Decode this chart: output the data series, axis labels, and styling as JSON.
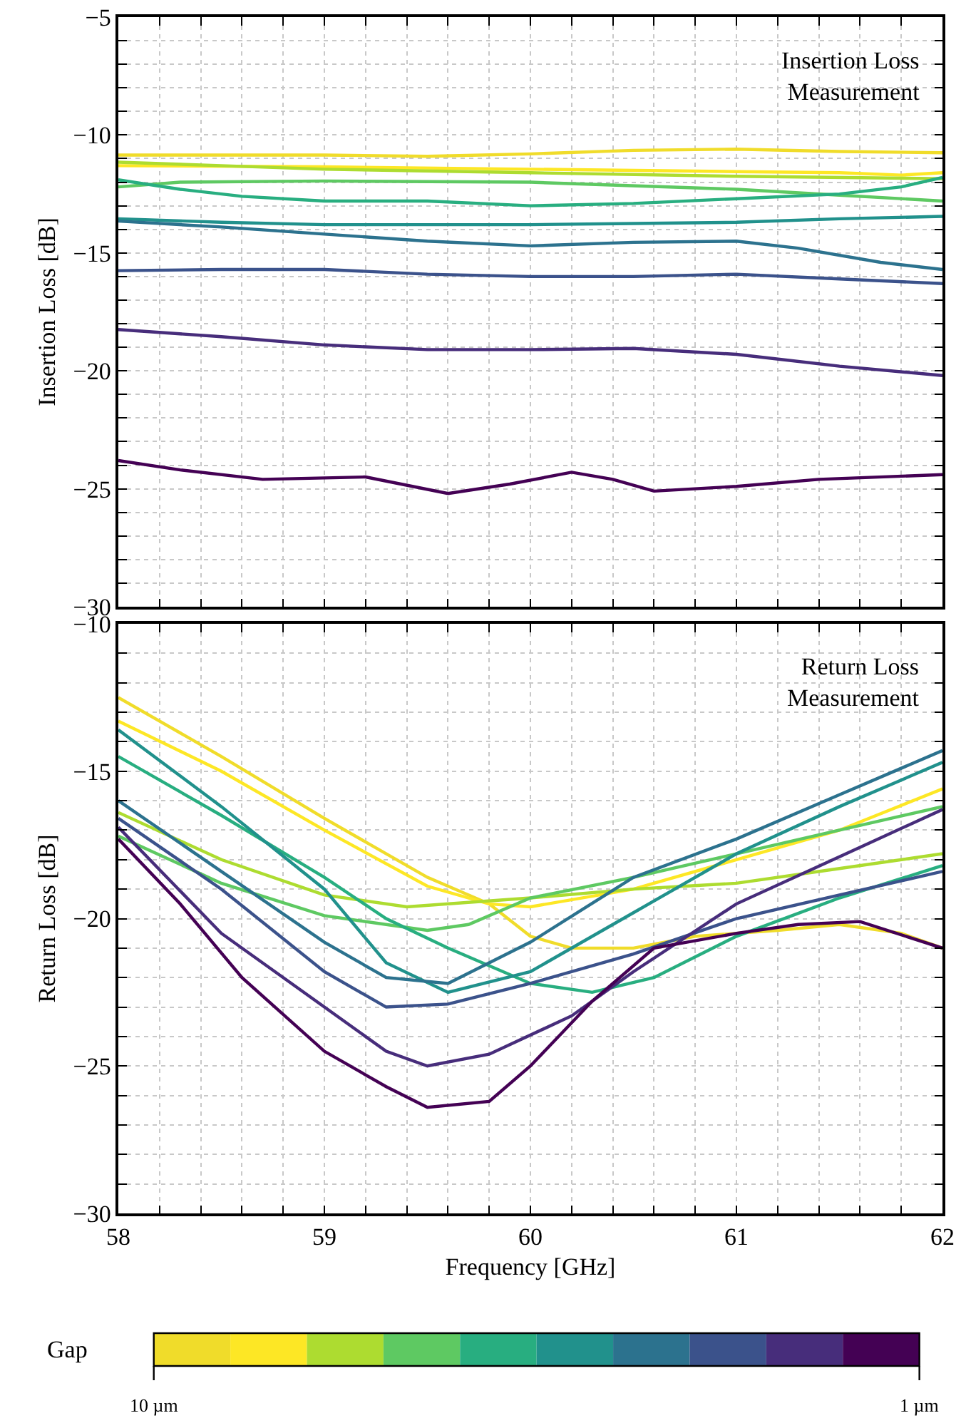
{
  "chart_data": [
    {
      "type": "line",
      "ylabel": "Insertion Loss [dB]",
      "annotations": [
        "Insertion Loss\nMeasurement"
      ],
      "xlim": [
        58,
        62
      ],
      "ylim": [
        -30,
        -5
      ],
      "grid": true,
      "line_style": "solid",
      "tick_labels": "y",
      "xticks": [
        58,
        {
          "value": 58.2,
          "label": null
        },
        {
          "value": 58.4,
          "label": null
        },
        {
          "value": 58.6,
          "label": null
        },
        {
          "value": 58.8,
          "label": null
        },
        59,
        {
          "value": 59.2,
          "label": null
        },
        {
          "value": 59.4,
          "label": null
        },
        {
          "value": 59.6,
          "label": null
        },
        {
          "value": 59.8,
          "label": null
        },
        60,
        {
          "value": 60.2,
          "label": null
        },
        {
          "value": 60.4,
          "label": null
        },
        {
          "value": 60.6,
          "label": null
        },
        {
          "value": 60.8,
          "label": null
        },
        61,
        {
          "value": 61.2,
          "label": null
        },
        {
          "value": 61.4,
          "label": null
        },
        {
          "value": 61.6,
          "label": null
        },
        {
          "value": 61.8,
          "label": null
        },
        62
      ],
      "yticks": [
        -30,
        {
          "value": -29,
          "label": null
        },
        {
          "value": -28,
          "label": null
        },
        {
          "value": -27,
          "label": null
        },
        {
          "value": -26,
          "label": null
        },
        -25,
        {
          "value": -24,
          "label": null
        },
        {
          "value": -23,
          "label": null
        },
        {
          "value": -22,
          "label": null
        },
        {
          "value": -21,
          "label": null
        },
        -20,
        {
          "value": -19,
          "label": null
        },
        {
          "value": -18,
          "label": null
        },
        {
          "value": -17,
          "label": null
        },
        {
          "value": -16,
          "label": null
        },
        -15,
        {
          "value": -14,
          "label": null
        },
        {
          "value": -13,
          "label": null
        },
        {
          "value": -12,
          "label": null
        },
        {
          "value": -11,
          "label": null
        },
        -10,
        {
          "value": -9,
          "label": null
        },
        {
          "value": -8,
          "label": null
        },
        {
          "value": -7,
          "label": null
        },
        {
          "value": -6,
          "label": null
        },
        -5
      ],
      "series": [
        {
          "color": "#f0dc2a",
          "x": [
            58,
            58.5,
            59,
            59.5,
            60,
            60.5,
            61,
            61.5,
            62
          ],
          "values": [
            -10.85,
            -10.85,
            -10.85,
            -10.9,
            -10.8,
            -10.65,
            -10.6,
            -10.7,
            -10.75
          ]
        },
        {
          "color": "#fde725",
          "x": [
            58,
            59,
            60,
            61,
            61.5,
            61.8,
            62
          ],
          "values": [
            -11.3,
            -11.35,
            -11.45,
            -11.55,
            -11.6,
            -11.7,
            -11.6
          ]
        },
        {
          "color": "#addc30",
          "x": [
            58,
            58.5,
            59,
            60,
            61,
            62
          ],
          "values": [
            -11.15,
            -11.3,
            -11.45,
            -11.6,
            -11.75,
            -11.85
          ]
        },
        {
          "color": "#5ec962",
          "x": [
            58,
            58.3,
            59,
            60,
            61,
            61.5,
            62
          ],
          "values": [
            -12.2,
            -12.0,
            -11.95,
            -12.0,
            -12.3,
            -12.55,
            -12.8
          ]
        },
        {
          "color": "#28ae80",
          "x": [
            58,
            58.3,
            58.6,
            59,
            59.5,
            60,
            60.5,
            61,
            61.5,
            61.8,
            62
          ],
          "values": [
            -11.9,
            -12.3,
            -12.6,
            -12.8,
            -12.8,
            -13.0,
            -12.9,
            -12.7,
            -12.5,
            -12.2,
            -11.8
          ]
        },
        {
          "color": "#21918c",
          "x": [
            58,
            58.5,
            59,
            59.5,
            60,
            60.5,
            61,
            61.5,
            62
          ],
          "values": [
            -13.55,
            -13.7,
            -13.8,
            -13.8,
            -13.8,
            -13.75,
            -13.7,
            -13.55,
            -13.45
          ]
        },
        {
          "color": "#2c728e",
          "x": [
            58,
            58.5,
            59,
            59.5,
            60,
            60.5,
            61,
            61.3,
            61.7,
            62
          ],
          "values": [
            -13.65,
            -13.9,
            -14.2,
            -14.5,
            -14.7,
            -14.55,
            -14.5,
            -14.8,
            -15.4,
            -15.7
          ]
        },
        {
          "color": "#3b528b",
          "x": [
            58,
            58.5,
            59,
            59.5,
            60,
            60.5,
            61,
            61.5,
            62
          ],
          "values": [
            -15.75,
            -15.7,
            -15.7,
            -15.9,
            -16.0,
            -16.0,
            -15.9,
            -16.1,
            -16.3
          ]
        },
        {
          "color": "#472d7b",
          "x": [
            58,
            58.5,
            59,
            59.5,
            60,
            60.5,
            61,
            61.5,
            62
          ],
          "values": [
            -18.25,
            -18.55,
            -18.9,
            -19.1,
            -19.1,
            -19.05,
            -19.3,
            -19.8,
            -20.2
          ]
        },
        {
          "color": "#440154",
          "x": [
            58,
            58.3,
            58.7,
            59.2,
            59.6,
            59.9,
            60.2,
            60.4,
            60.6,
            61,
            61.4,
            62
          ],
          "values": [
            -23.8,
            -24.2,
            -24.6,
            -24.5,
            -25.2,
            -24.8,
            -24.3,
            -24.6,
            -25.1,
            -24.9,
            -24.6,
            -24.4
          ]
        }
      ]
    },
    {
      "type": "line",
      "xlabel": "Frequency [GHz]",
      "ylabel": "Return Loss [dB]",
      "annotations": [
        "Return Loss\nMeasurement"
      ],
      "xlim": [
        58,
        62
      ],
      "ylim": [
        -30,
        -10
      ],
      "grid": true,
      "line_style": "solid",
      "clabel": "Gap",
      "clim": [
        10,
        1
      ],
      "cticks": [
        {
          "value": 10,
          "label": "10 µm"
        },
        {
          "value": 1,
          "label": "1 µm"
        }
      ],
      "xticks": [
        58,
        {
          "value": 58.2,
          "label": null
        },
        {
          "value": 58.4,
          "label": null
        },
        {
          "value": 58.6,
          "label": null
        },
        {
          "value": 58.8,
          "label": null
        },
        59,
        {
          "value": 59.2,
          "label": null
        },
        {
          "value": 59.4,
          "label": null
        },
        {
          "value": 59.6,
          "label": null
        },
        {
          "value": 59.8,
          "label": null
        },
        60,
        {
          "value": 60.2,
          "label": null
        },
        {
          "value": 60.4,
          "label": null
        },
        {
          "value": 60.6,
          "label": null
        },
        {
          "value": 60.8,
          "label": null
        },
        61,
        {
          "value": 61.2,
          "label": null
        },
        {
          "value": 61.4,
          "label": null
        },
        {
          "value": 61.6,
          "label": null
        },
        {
          "value": 61.8,
          "label": null
        },
        62
      ],
      "yticks": [
        -30,
        {
          "value": -29,
          "label": null
        },
        {
          "value": -28,
          "label": null
        },
        {
          "value": -27,
          "label": null
        },
        {
          "value": -26,
          "label": null
        },
        -25,
        {
          "value": -24,
          "label": null
        },
        {
          "value": -23,
          "label": null
        },
        {
          "value": -22,
          "label": null
        },
        {
          "value": -21,
          "label": null
        },
        -20,
        {
          "value": -19,
          "label": null
        },
        {
          "value": -18,
          "label": null
        },
        {
          "value": -17,
          "label": null
        },
        {
          "value": -16,
          "label": null
        },
        -15,
        {
          "value": -14,
          "label": null
        },
        {
          "value": -13,
          "label": null
        },
        {
          "value": -12,
          "label": null
        },
        {
          "value": -11,
          "label": null
        },
        -10
      ],
      "series": [
        {
          "color": "#f0dc2a",
          "x": [
            58,
            58.5,
            59,
            59.5,
            59.8,
            60,
            60.2,
            60.5,
            60.8,
            61.2,
            61.5,
            61.8,
            62
          ],
          "values": [
            -12.5,
            -14.5,
            -16.6,
            -18.6,
            -19.5,
            -20.6,
            -21.0,
            -21.0,
            -20.6,
            -20.4,
            -20.2,
            -20.5,
            -21.0
          ]
        },
        {
          "color": "#fde725",
          "x": [
            58,
            58.5,
            59,
            59.5,
            59.8,
            60,
            60.5,
            61,
            61.5,
            62
          ],
          "values": [
            -13.3,
            -15.0,
            -17.0,
            -18.9,
            -19.5,
            -19.6,
            -19.0,
            -18.0,
            -17.0,
            -15.6
          ]
        },
        {
          "color": "#addc30",
          "x": [
            58,
            58.5,
            59,
            59.4,
            60,
            60.5,
            61,
            61.5,
            62
          ],
          "values": [
            -16.4,
            -18.0,
            -19.2,
            -19.6,
            -19.3,
            -19.0,
            -18.8,
            -18.3,
            -17.8
          ]
        },
        {
          "color": "#5ec962",
          "x": [
            58,
            58.5,
            59,
            59.5,
            59.7,
            60,
            60.5,
            61,
            61.5,
            62
          ],
          "values": [
            -17.2,
            -18.8,
            -19.9,
            -20.4,
            -20.2,
            -19.3,
            -18.6,
            -17.8,
            -17.0,
            -16.2
          ]
        },
        {
          "color": "#28ae80",
          "x": [
            58,
            58.5,
            59,
            59.3,
            59.6,
            60,
            60.3,
            60.6,
            61,
            61.5,
            62
          ],
          "values": [
            -14.5,
            -16.5,
            -18.6,
            -20.0,
            -21.0,
            -22.2,
            -22.5,
            -22.0,
            -20.6,
            -19.3,
            -18.2
          ]
        },
        {
          "color": "#21918c",
          "x": [
            58,
            58.5,
            59,
            59.3,
            59.6,
            60,
            60.5,
            61,
            61.5,
            62
          ],
          "values": [
            -13.6,
            -16.2,
            -19.0,
            -21.5,
            -22.5,
            -21.8,
            -19.8,
            -17.8,
            -16.2,
            -14.7
          ]
        },
        {
          "color": "#2c728e",
          "x": [
            58,
            58.5,
            59,
            59.3,
            59.6,
            60,
            60.5,
            61,
            61.5,
            62
          ],
          "values": [
            -16.0,
            -18.4,
            -20.8,
            -22.0,
            -22.2,
            -20.8,
            -18.6,
            -17.3,
            -15.8,
            -14.3
          ]
        },
        {
          "color": "#3b528b",
          "x": [
            58,
            58.5,
            59,
            59.3,
            59.6,
            60,
            60.5,
            61,
            61.5,
            62
          ],
          "values": [
            -16.6,
            -19.0,
            -21.8,
            -23.0,
            -22.9,
            -22.2,
            -21.2,
            -20.0,
            -19.2,
            -18.4
          ]
        },
        {
          "color": "#472d7b",
          "x": [
            58,
            58.5,
            59,
            59.3,
            59.5,
            59.8,
            60.2,
            60.5,
            61,
            61.5,
            62
          ],
          "values": [
            -16.9,
            -20.5,
            -23.0,
            -24.5,
            -25.0,
            -24.6,
            -23.3,
            -21.8,
            -19.5,
            -17.9,
            -16.3
          ]
        },
        {
          "color": "#440154",
          "x": [
            58,
            58.3,
            58.6,
            59,
            59.3,
            59.5,
            59.8,
            60,
            60.3,
            60.6,
            61,
            61.3,
            61.6,
            62
          ],
          "values": [
            -17.3,
            -19.5,
            -22.0,
            -24.5,
            -25.7,
            -26.4,
            -26.2,
            -25.0,
            -22.8,
            -21.0,
            -20.5,
            -20.2,
            -20.1,
            -21.0
          ]
        }
      ]
    }
  ]
}
